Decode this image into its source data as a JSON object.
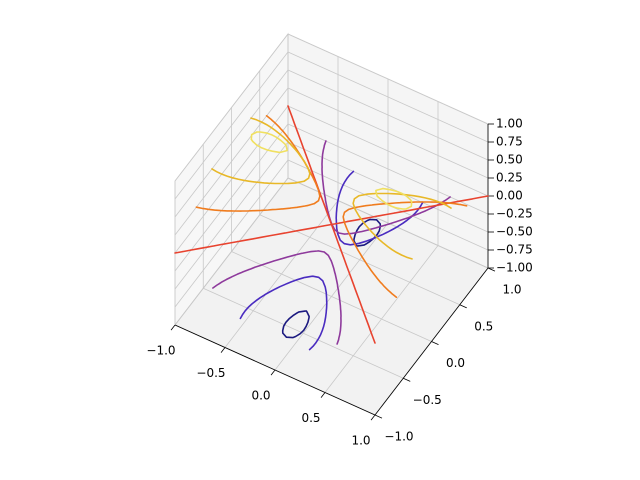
{
  "chart_data": {
    "type": "contour3d",
    "levels": [
      -0.75,
      -0.5,
      -0.25,
      0,
      0.25,
      0.5,
      0.75
    ],
    "colors": [
      "#1c1a80",
      "#4a2cc0",
      "#8e3a9c",
      "#e8432f",
      "#f07c1e",
      "#e8b828",
      "#f0e060"
    ],
    "xlim": [
      -1,
      1
    ],
    "ylim": [
      -1,
      1
    ],
    "zlim": [
      -1,
      1
    ],
    "xticks": [
      {
        "value": -1,
        "label": "−1.0"
      },
      {
        "value": -0.5,
        "label": "−0.5"
      },
      {
        "value": 0,
        "label": "0.0"
      },
      {
        "value": 0.5,
        "label": "0.5"
      },
      {
        "value": 1,
        "label": "1.0"
      }
    ],
    "yticks": [
      {
        "value": -1,
        "label": "−1.0"
      },
      {
        "value": -0.5,
        "label": "−0.5"
      },
      {
        "value": 0,
        "label": "0.0"
      },
      {
        "value": 0.5,
        "label": "0.5"
      },
      {
        "value": 1,
        "label": "1.0"
      }
    ],
    "zticks": [
      {
        "value": -1,
        "label": "−1.00"
      },
      {
        "value": -0.75,
        "label": "−0.75"
      },
      {
        "value": -0.5,
        "label": "−0.50"
      },
      {
        "value": -0.25,
        "label": "−0.25"
      },
      {
        "value": 0,
        "label": "0.00"
      },
      {
        "value": 0.25,
        "label": "0.25"
      },
      {
        "value": 0.5,
        "label": "0.50"
      },
      {
        "value": 0.75,
        "label": "0.75"
      },
      {
        "value": 1,
        "label": "1.00"
      }
    ],
    "grid": true
  }
}
